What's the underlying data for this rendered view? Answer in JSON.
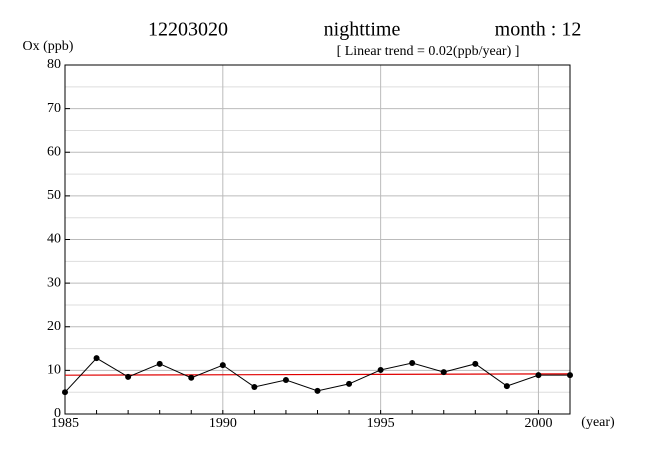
{
  "chart_data": {
    "type": "line",
    "station": "12203020",
    "period": "nighttime",
    "month": "month : 12",
    "subtitle": "[ Linear trend = 0.02(ppb/year) ]",
    "y_label": "Ox (ppb)",
    "x_label": "(year)",
    "x": [
      1985,
      1986,
      1987,
      1988,
      1989,
      1990,
      1991,
      1992,
      1993,
      1994,
      1995,
      1996,
      1997,
      1998,
      1999,
      2000,
      2001
    ],
    "series": [
      {
        "color": "#000000",
        "values": [
          5.0,
          12.8,
          8.5,
          11.5,
          8.3,
          11.2,
          6.2,
          7.8,
          5.3,
          6.9,
          10.1,
          11.7,
          9.6,
          11.5,
          6.4,
          8.9,
          8.9
        ]
      }
    ],
    "trend": {
      "color": "#e00000",
      "x": [
        1985,
        2001
      ],
      "values": [
        8.9,
        9.2
      ]
    },
    "xlim": [
      1985,
      2001
    ],
    "xticks": [
      1985,
      1990,
      1995,
      2000
    ],
    "ylim": [
      0,
      80
    ],
    "yticks": [
      0,
      10,
      20,
      30,
      40,
      50,
      60,
      70,
      80
    ],
    "y_minor_grid": [
      5,
      15,
      25,
      35,
      45,
      55,
      65,
      75
    ],
    "grid": true
  }
}
